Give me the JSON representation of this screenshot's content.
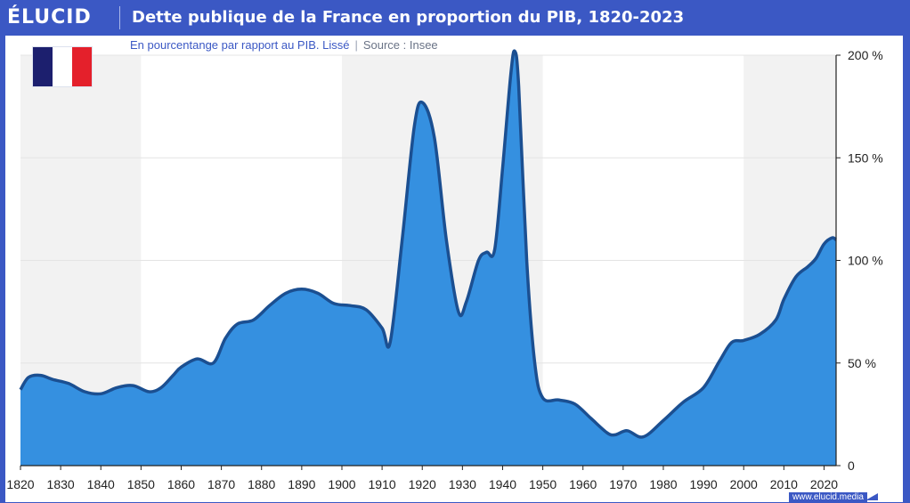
{
  "header": {
    "brand": "ÉLUCID",
    "title": "Dette publique de la France en proportion du PIB, 1820-2023"
  },
  "subtitle": {
    "text": "En pourcentange par rapport au PIB. Lissé",
    "separator": "|",
    "source": "Source : Insee"
  },
  "flag": {
    "icon": "france-flag-icon",
    "colors": [
      "#1c1f6e",
      "#ffffff",
      "#e4202b"
    ]
  },
  "footer": {
    "url": "www.elucid.media"
  },
  "colors": {
    "area": "#3590e0",
    "line": "#1b4f91",
    "band": "#f2f2f2",
    "grid": "#e4e4e4"
  },
  "chart_data": {
    "type": "area",
    "title": "Dette publique de la France en proportion du PIB, 1820-2023",
    "xlabel": "",
    "ylabel": "",
    "xlim": [
      1820,
      2023
    ],
    "ylim": [
      0,
      200
    ],
    "y_ticks": [
      0,
      50,
      100,
      150,
      200
    ],
    "y_tick_labels": [
      "0",
      "50 %",
      "100 %",
      "150 %",
      "200 %"
    ],
    "x_ticks": [
      1820,
      1830,
      1840,
      1850,
      1860,
      1870,
      1880,
      1890,
      1900,
      1910,
      1920,
      1930,
      1940,
      1950,
      1960,
      1970,
      1980,
      1990,
      2000,
      2010,
      2020
    ],
    "x_tick_labels": [
      "1820",
      "1830",
      "1840",
      "1850",
      "1860",
      "1870",
      "1880",
      "1890",
      "1900",
      "1910",
      "1920",
      "1930",
      "1940",
      "1950",
      "1960",
      "1970",
      "1980",
      "1990",
      "2000",
      "2010",
      "2020"
    ],
    "shaded_periods": [
      [
        1820,
        1850
      ],
      [
        1900,
        1950
      ],
      [
        2000,
        2023
      ]
    ],
    "grid": true,
    "y_axis_position": "right",
    "series": [
      {
        "x": [
          1820,
          1822,
          1825,
          1828,
          1832,
          1836,
          1840,
          1844,
          1848,
          1852,
          1855,
          1858,
          1860,
          1864,
          1868,
          1871,
          1874,
          1878,
          1882,
          1886,
          1890,
          1894,
          1898,
          1902,
          1906,
          1910,
          1912,
          1915,
          1918,
          1920,
          1923,
          1926,
          1929,
          1931,
          1934,
          1936,
          1938,
          1940,
          1942,
          1943,
          1944,
          1946,
          1948,
          1950,
          1954,
          1958,
          1962,
          1966,
          1968,
          1971,
          1975,
          1980,
          1985,
          1990,
          1994,
          1997,
          2000,
          2004,
          2008,
          2010,
          2013,
          2016,
          2018,
          2020,
          2022,
          2023
        ],
        "y": [
          37,
          43,
          44,
          42,
          40,
          36,
          35,
          38,
          39,
          36,
          38,
          44,
          48,
          52,
          50,
          62,
          69,
          71,
          78,
          84,
          86,
          84,
          79,
          78,
          76,
          67,
          60,
          110,
          165,
          177,
          160,
          110,
          75,
          80,
          100,
          104,
          105,
          145,
          190,
          202,
          185,
          100,
          50,
          33,
          32,
          30,
          23,
          16,
          15,
          17,
          14,
          22,
          31,
          38,
          51,
          60,
          61,
          64,
          71,
          81,
          92,
          97,
          101,
          108,
          111,
          110
        ]
      }
    ]
  }
}
